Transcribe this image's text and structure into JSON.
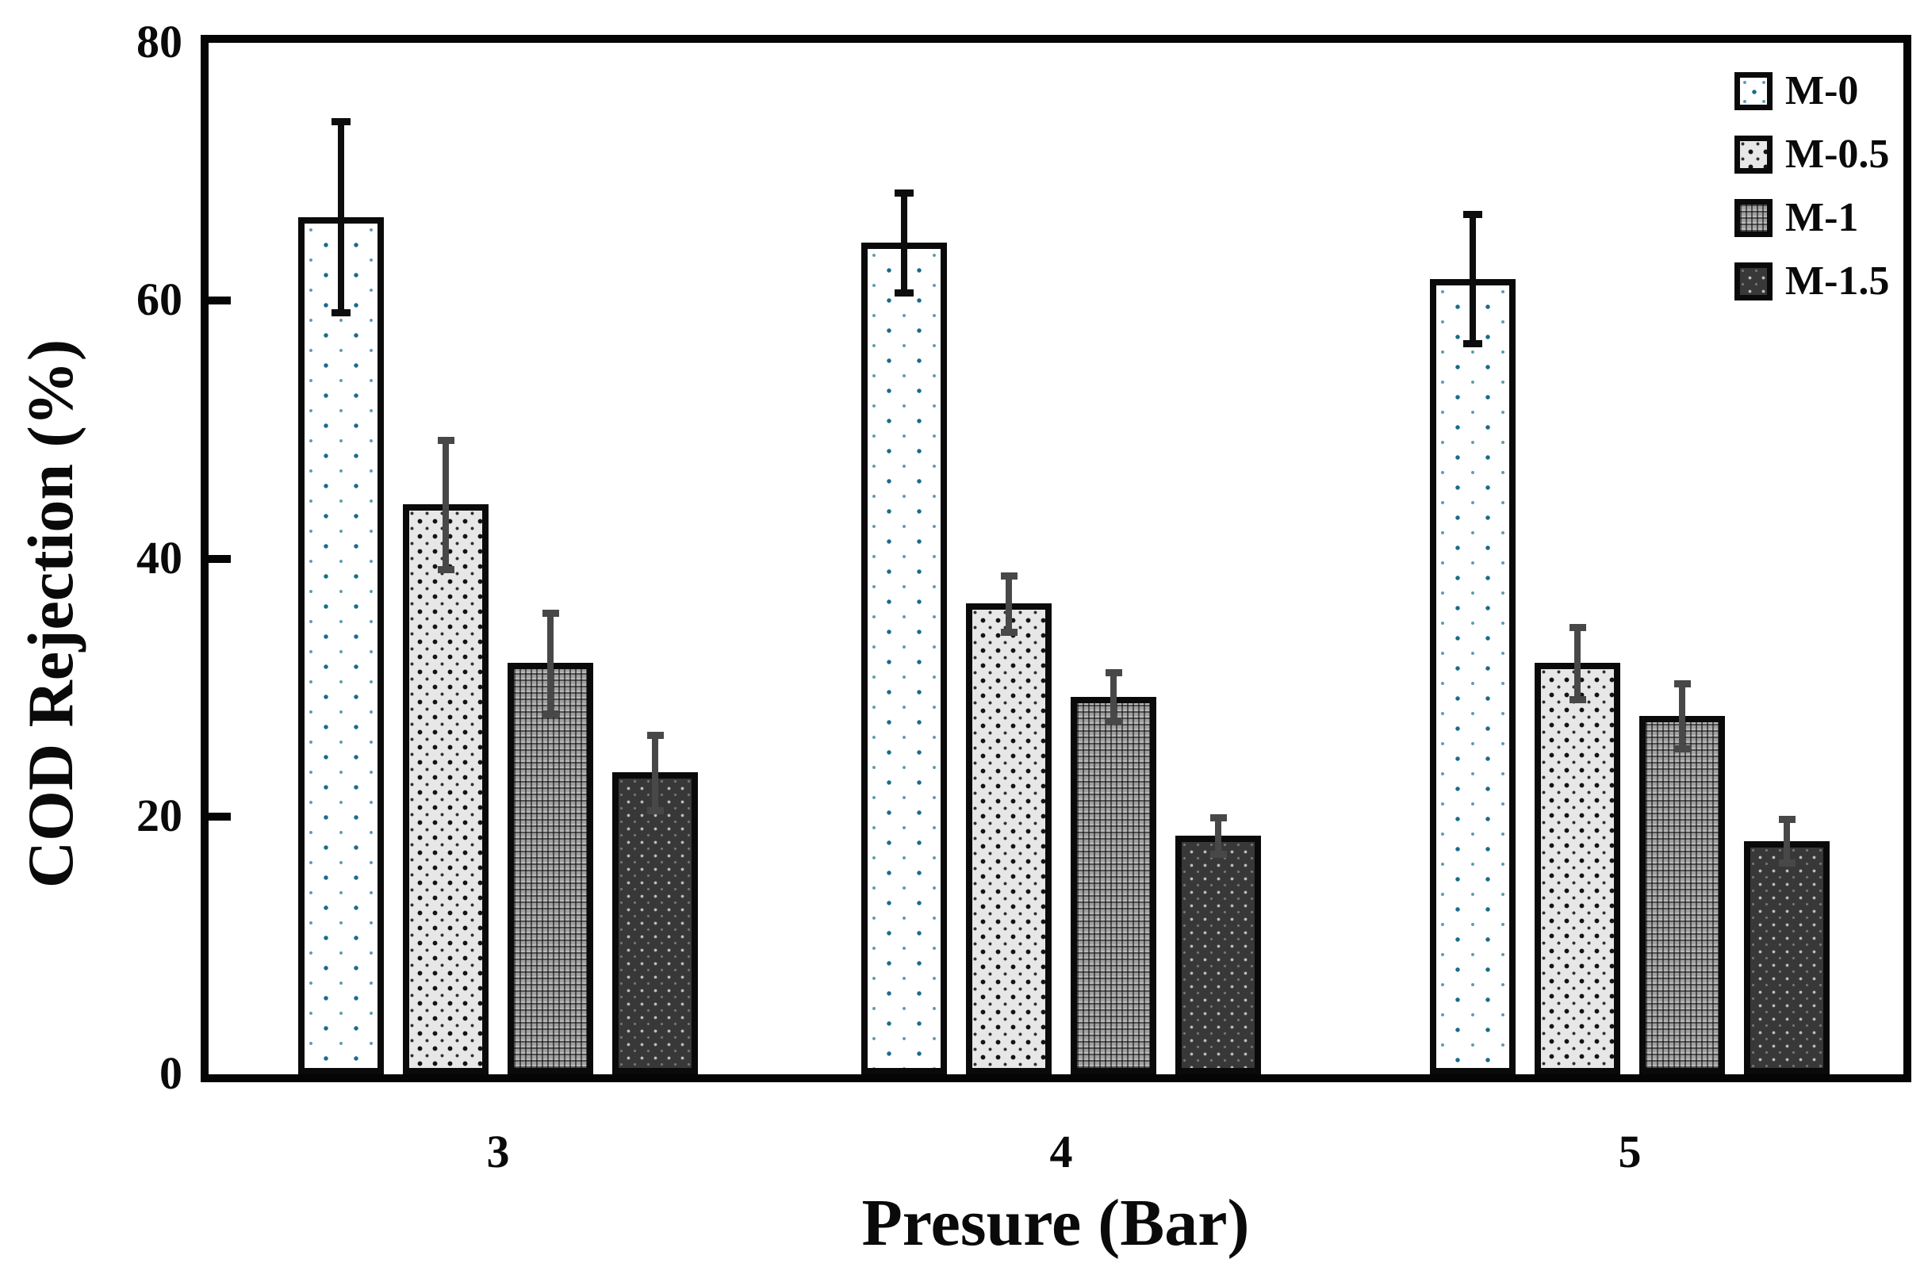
{
  "figure": {
    "background": "#ffffff"
  },
  "chart_data": {
    "type": "bar",
    "title": "",
    "xlabel": "Presure (Bar)",
    "ylabel": "COD Rejection (%)",
    "categories": [
      "3",
      "4",
      "5"
    ],
    "y_ticks": [
      0,
      20,
      40,
      60,
      80
    ],
    "ylim": [
      0,
      80
    ],
    "grid": false,
    "legend_position": "top-right-inside",
    "series": [
      {
        "name": "M-0",
        "values": [
          66.5,
          64.5,
          61.7
        ],
        "errors": [
          7.4,
          3.9,
          5.0
        ],
        "pattern": "blue-dots",
        "error_color": "#0d0d0d"
      },
      {
        "name": "M-0.5",
        "values": [
          44.2,
          36.5,
          31.9
        ],
        "errors": [
          5.0,
          2.2,
          2.8
        ],
        "pattern": "gray-dots",
        "error_color": "#484848"
      },
      {
        "name": "M-1",
        "values": [
          31.9,
          29.3,
          27.8
        ],
        "errors": [
          3.9,
          1.9,
          2.5
        ],
        "pattern": "weave",
        "error_color": "#484848"
      },
      {
        "name": "M-1.5",
        "values": [
          23.4,
          18.5,
          18.1
        ],
        "errors": [
          2.9,
          1.4,
          1.7
        ],
        "pattern": "dark-speckle",
        "error_color": "#484848"
      }
    ],
    "colors": {
      "m0_dot": "#1a6b8c",
      "m0_dot_light": "#5d99b0",
      "bar_border": "#0a0a0a",
      "frame": "#050505",
      "error_black": "#0d0d0d",
      "error_gray": "#484848"
    }
  }
}
